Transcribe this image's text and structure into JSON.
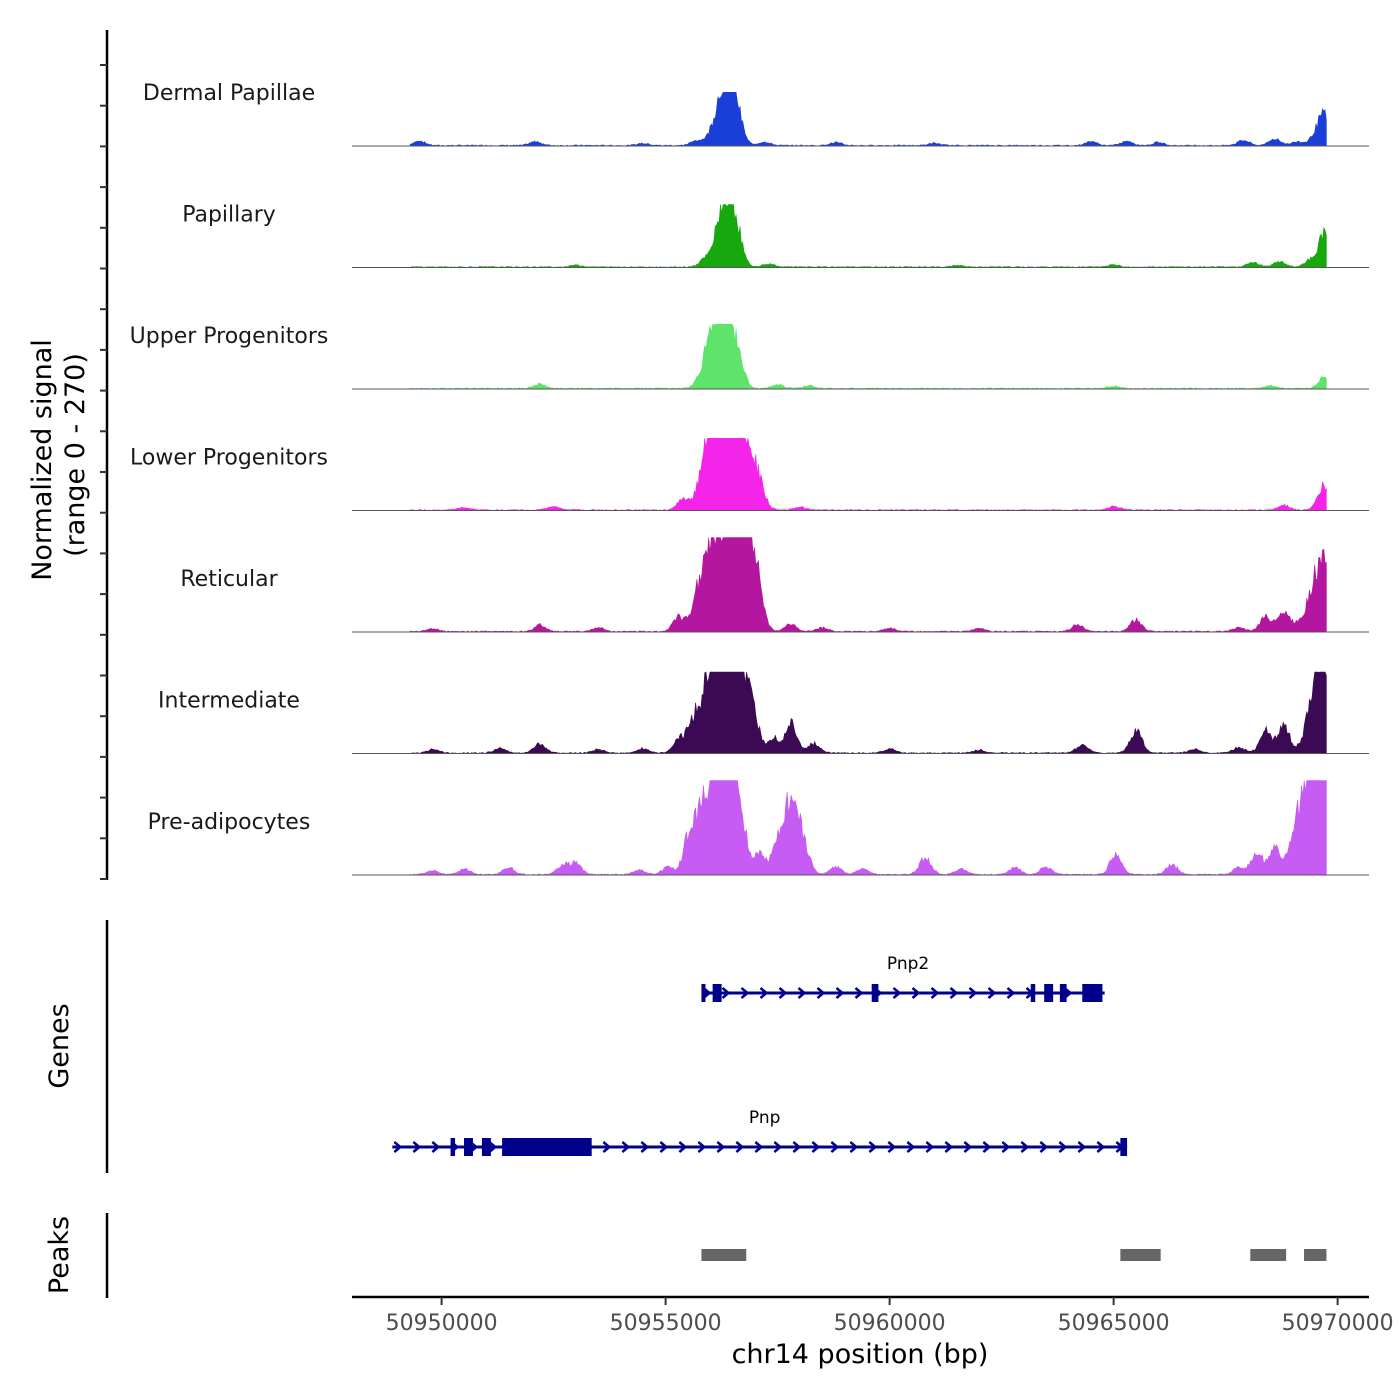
{
  "chart_data": {
    "type": "area",
    "title": "",
    "xlabel": "chr14 position (bp)",
    "ylabel_line1": "Normalized signal",
    "ylabel_line2": "(range 0 - 270)",
    "ylim": [
      0,
      270
    ],
    "xlim": [
      50948000,
      50970700
    ],
    "x_ticks": [
      50950000,
      50955000,
      50960000,
      50965000,
      50970000
    ],
    "x_tick_labels": [
      "50950000",
      "50955000",
      "50960000",
      "50965000",
      "50970000"
    ],
    "signal_range": [
      50949300,
      50969750
    ],
    "tracks": [
      {
        "name": "Dermal Papillae",
        "color": "#1a3fd6",
        "max": 145,
        "peaks": [
          [
            50949500,
            12
          ],
          [
            50952100,
            10
          ],
          [
            50954500,
            6
          ],
          [
            50955700,
            14
          ],
          [
            50956050,
            32
          ],
          [
            50956250,
            70
          ],
          [
            50956420,
            145
          ],
          [
            50956600,
            40
          ],
          [
            50957200,
            10
          ],
          [
            50958800,
            8
          ],
          [
            50961000,
            6
          ],
          [
            50964500,
            10
          ],
          [
            50965300,
            12
          ],
          [
            50966000,
            8
          ],
          [
            50967900,
            14
          ],
          [
            50968600,
            18
          ],
          [
            50969100,
            10
          ],
          [
            50969500,
            22
          ],
          [
            50969700,
            75
          ]
        ]
      },
      {
        "name": "Papillary",
        "color": "#17a80e",
        "max": 170,
        "peaks": [
          [
            50953000,
            5
          ],
          [
            50955900,
            22
          ],
          [
            50956200,
            60
          ],
          [
            50956400,
            170
          ],
          [
            50956600,
            45
          ],
          [
            50957300,
            8
          ],
          [
            50961500,
            4
          ],
          [
            50965000,
            6
          ],
          [
            50968100,
            12
          ],
          [
            50968700,
            15
          ],
          [
            50969400,
            20
          ],
          [
            50969720,
            95
          ]
        ]
      },
      {
        "name": "Upper Progenitors",
        "color": "#5ee36b",
        "max": 175,
        "peaks": [
          [
            50952200,
            12
          ],
          [
            50955800,
            20
          ],
          [
            50956050,
            130
          ],
          [
            50956200,
            60
          ],
          [
            50956400,
            175
          ],
          [
            50956650,
            40
          ],
          [
            50957500,
            10
          ],
          [
            50958200,
            8
          ],
          [
            50965000,
            6
          ],
          [
            50968500,
            8
          ],
          [
            50969700,
            30
          ]
        ]
      },
      {
        "name": "Lower Progenitors",
        "color": "#f425e8",
        "max": 195,
        "peaks": [
          [
            50950500,
            6
          ],
          [
            50952500,
            10
          ],
          [
            50955400,
            30
          ],
          [
            50955900,
            110
          ],
          [
            50956100,
            180
          ],
          [
            50956350,
            195
          ],
          [
            50956600,
            150
          ],
          [
            50956850,
            135
          ],
          [
            50957100,
            50
          ],
          [
            50958000,
            8
          ],
          [
            50965000,
            10
          ],
          [
            50968800,
            12
          ],
          [
            50969700,
            65
          ]
        ]
      },
      {
        "name": "Reticular",
        "color": "#b5169f",
        "max": 255,
        "peaks": [
          [
            50949800,
            8
          ],
          [
            50952200,
            18
          ],
          [
            50953500,
            10
          ],
          [
            50955300,
            40
          ],
          [
            50955700,
            75
          ],
          [
            50955950,
            140
          ],
          [
            50956150,
            170
          ],
          [
            50956400,
            150
          ],
          [
            50956600,
            200
          ],
          [
            50956850,
            255
          ],
          [
            50957100,
            45
          ],
          [
            50957800,
            20
          ],
          [
            50958500,
            10
          ],
          [
            50960000,
            8
          ],
          [
            50962000,
            8
          ],
          [
            50964200,
            18
          ],
          [
            50965500,
            30
          ],
          [
            50967800,
            10
          ],
          [
            50968400,
            40
          ],
          [
            50968800,
            55
          ],
          [
            50969200,
            30
          ],
          [
            50969450,
            70
          ],
          [
            50969700,
            175
          ]
        ]
      },
      {
        "name": "Intermediate",
        "color": "#3c0a55",
        "max": 220,
        "peaks": [
          [
            50949800,
            10
          ],
          [
            50951300,
            12
          ],
          [
            50952200,
            25
          ],
          [
            50953500,
            10
          ],
          [
            50954500,
            12
          ],
          [
            50955300,
            35
          ],
          [
            50955600,
            60
          ],
          [
            50955850,
            110
          ],
          [
            50956100,
            140
          ],
          [
            50956300,
            120
          ],
          [
            50956450,
            220
          ],
          [
            50956750,
            160
          ],
          [
            50957000,
            50
          ],
          [
            50957400,
            40
          ],
          [
            50957800,
            80
          ],
          [
            50958300,
            25
          ],
          [
            50960000,
            10
          ],
          [
            50962000,
            8
          ],
          [
            50964300,
            22
          ],
          [
            50965500,
            60
          ],
          [
            50966800,
            10
          ],
          [
            50967800,
            15
          ],
          [
            50968400,
            60
          ],
          [
            50968800,
            70
          ],
          [
            50969300,
            50
          ],
          [
            50969500,
            80
          ],
          [
            50969700,
            210
          ]
        ]
      },
      {
        "name": "Pre-adipocytes",
        "color": "#c65cf4",
        "max": 255,
        "peaks": [
          [
            50949800,
            10
          ],
          [
            50950500,
            15
          ],
          [
            50951500,
            18
          ],
          [
            50952700,
            25
          ],
          [
            50953000,
            30
          ],
          [
            50954400,
            12
          ],
          [
            50955050,
            20
          ],
          [
            50955500,
            70
          ],
          [
            50955750,
            120
          ],
          [
            50956050,
            190
          ],
          [
            50956250,
            120
          ],
          [
            50956450,
            255
          ],
          [
            50956650,
            110
          ],
          [
            50957100,
            50
          ],
          [
            50957500,
            70
          ],
          [
            50957800,
            195
          ],
          [
            50958100,
            60
          ],
          [
            50958800,
            20
          ],
          [
            50959400,
            15
          ],
          [
            50960800,
            45
          ],
          [
            50961600,
            15
          ],
          [
            50962800,
            18
          ],
          [
            50963500,
            20
          ],
          [
            50965050,
            55
          ],
          [
            50966300,
            25
          ],
          [
            50967800,
            20
          ],
          [
            50968200,
            60
          ],
          [
            50968600,
            65
          ],
          [
            50969100,
            110
          ],
          [
            50969350,
            160
          ],
          [
            50969550,
            120
          ],
          [
            50969700,
            245
          ]
        ]
      }
    ],
    "genes": [
      {
        "name": "Pnp2",
        "start": 50955800,
        "end": 50964800,
        "strand": "+",
        "exons": [
          [
            50955800,
            50955850
          ],
          [
            50956050,
            50956250
          ],
          [
            50959600,
            50959750
          ],
          [
            50963150,
            50963250
          ],
          [
            50963450,
            50963650
          ],
          [
            50963800,
            50963950
          ],
          [
            50964300,
            50964750
          ]
        ]
      },
      {
        "name": "Pnp",
        "start": 50948900,
        "end": 50965300,
        "strand": "+",
        "exons": [
          [
            50950200,
            50950300
          ],
          [
            50950500,
            50950700
          ],
          [
            50950900,
            50951100
          ],
          [
            50951350,
            50951750
          ],
          [
            50951750,
            50953350
          ],
          [
            50965150,
            50965300
          ]
        ]
      }
    ],
    "peak_regions": [
      [
        50955800,
        50956800
      ],
      [
        50965150,
        50966050
      ],
      [
        50968050,
        50968850
      ],
      [
        50969250,
        50969750
      ]
    ],
    "panel_labels": {
      "genes": "Genes",
      "peaks": "Peaks"
    }
  }
}
